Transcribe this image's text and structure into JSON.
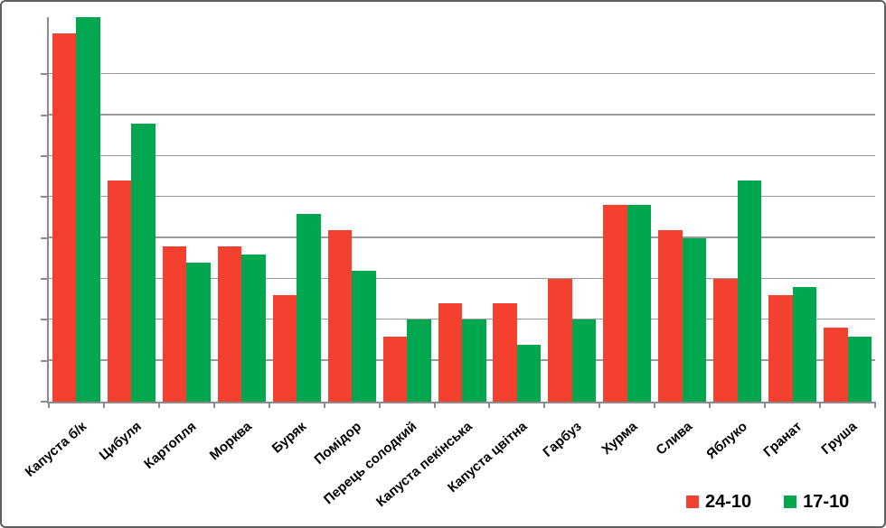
{
  "figure": {
    "background": "#ffffff",
    "frame_color": "#5f5f5f",
    "gridline_color": "#9a9a9a",
    "axis_color": "#8c8c8c"
  },
  "chart_data": {
    "type": "bar",
    "title": "",
    "xlabel": "",
    "ylabel": "",
    "categories": [
      "Капуста б/к",
      "Цибуля",
      "Картопля",
      "Морква",
      "Буряк",
      "Помідор",
      "Перець солодкий",
      "Капуста пекінська",
      "Капуста цвітна",
      "Гарбуз",
      "Хурма",
      "Слива",
      "Яблуко",
      "Гранат",
      "Груша"
    ],
    "series": [
      {
        "name": "24-10",
        "color": "#F4402E",
        "values": [
          45,
          27,
          19,
          19,
          13,
          21,
          8,
          12,
          12,
          15,
          24,
          21,
          15,
          13,
          9
        ]
      },
      {
        "name": "17-10",
        "color": "#00A74E",
        "values": [
          47,
          34,
          17,
          18,
          23,
          16,
          10,
          10,
          7,
          10,
          24,
          20,
          27,
          14,
          8
        ]
      }
    ],
    "ylim": [
      0,
      47
    ],
    "y_major_gridline_step": 5,
    "y_tick_labels_visible": false,
    "grid": true,
    "x_label_rotation_deg": -41,
    "legend_position": "bottom-right"
  }
}
